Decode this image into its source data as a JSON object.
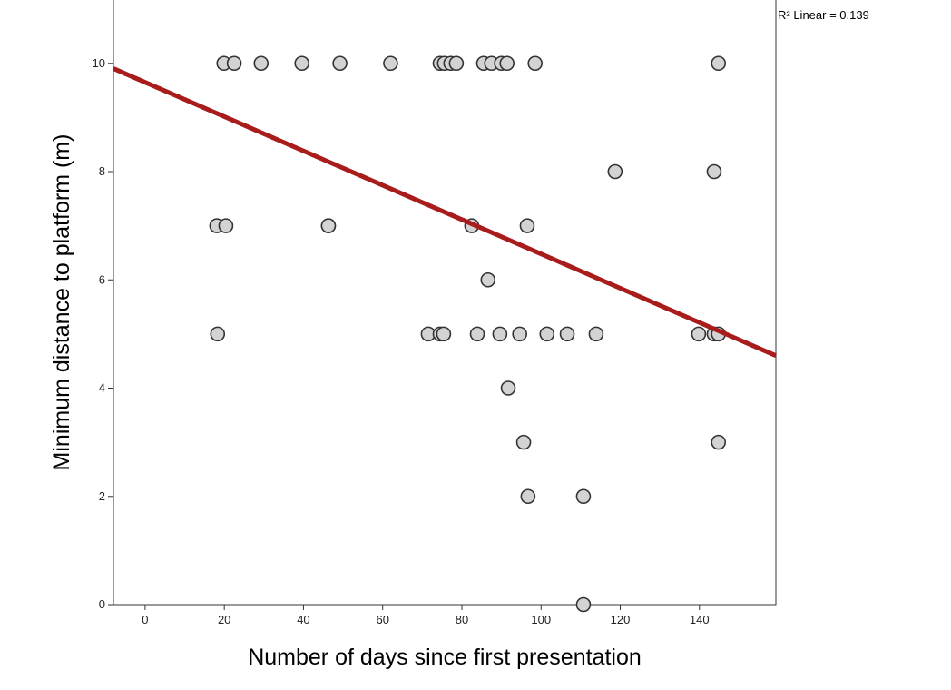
{
  "chart_data": {
    "type": "scatter",
    "title": "",
    "xlabel": "Number of days since first presentation",
    "ylabel": "Minimum distance to platform (m)",
    "xlim": [
      -8,
      159.3
    ],
    "ylim": [
      0,
      11.17
    ],
    "xticks": [
      0,
      20,
      40,
      60,
      80,
      100,
      120,
      140
    ],
    "yticks": [
      0,
      2,
      4,
      6,
      8,
      10
    ],
    "grid": false,
    "points": [
      [
        19.9,
        10
      ],
      [
        22.5,
        10
      ],
      [
        29.3,
        10
      ],
      [
        39.6,
        10
      ],
      [
        49.2,
        10
      ],
      [
        62,
        10
      ],
      [
        74.5,
        10
      ],
      [
        75.6,
        10
      ],
      [
        77.2,
        10
      ],
      [
        78.6,
        10
      ],
      [
        85.5,
        10
      ],
      [
        87.5,
        10
      ],
      [
        90,
        10
      ],
      [
        91.4,
        10
      ],
      [
        98.5,
        10
      ],
      [
        144.8,
        10
      ],
      [
        118.7,
        8
      ],
      [
        143.7,
        8
      ],
      [
        18.1,
        7
      ],
      [
        20.4,
        7
      ],
      [
        46.3,
        7
      ],
      [
        46.3,
        7
      ],
      [
        82.5,
        7
      ],
      [
        96.5,
        7
      ],
      [
        86.6,
        6
      ],
      [
        18.3,
        5
      ],
      [
        71.5,
        5
      ],
      [
        74.5,
        5
      ],
      [
        75.4,
        5
      ],
      [
        83.9,
        5
      ],
      [
        89.6,
        5
      ],
      [
        94.6,
        5
      ],
      [
        101.5,
        5
      ],
      [
        106.6,
        5
      ],
      [
        113.9,
        5
      ],
      [
        139.8,
        5
      ],
      [
        143.7,
        5
      ],
      [
        144.8,
        5
      ],
      [
        91.7,
        4
      ],
      [
        95.6,
        3
      ],
      [
        144.8,
        3
      ],
      [
        96.7,
        2
      ],
      [
        110.7,
        2
      ],
      [
        110.7,
        0
      ]
    ],
    "fit_line": {
      "type": "linear",
      "intercept": 9.65,
      "slope": -0.0317,
      "label": "R² Linear = 0.139"
    },
    "colors": {
      "point_fill": "#d3d3d3",
      "point_stroke": "#333333",
      "line": "#a81c1c"
    }
  }
}
